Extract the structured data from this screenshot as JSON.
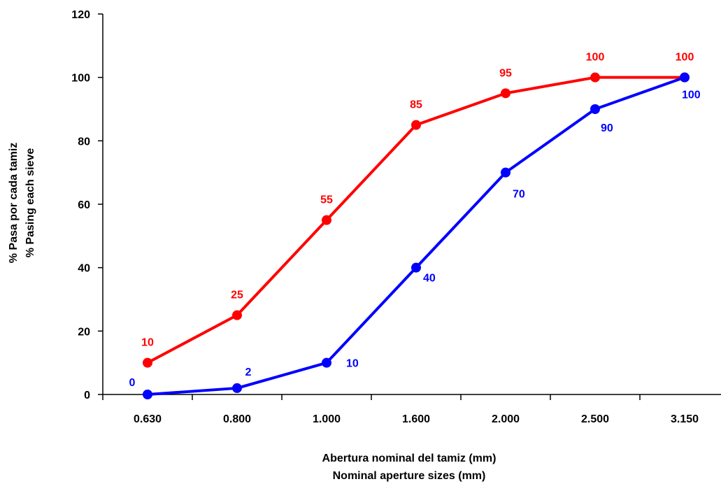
{
  "chart_data": {
    "type": "line",
    "categories": [
      "0.630",
      "0.800",
      "1.000",
      "1.600",
      "2.000",
      "2.500",
      "3.150"
    ],
    "series": [
      {
        "color": "#ff0000",
        "values": [
          10,
          25,
          55,
          85,
          95,
          100,
          100
        ]
      },
      {
        "color": "#0000ff",
        "values": [
          0,
          2,
          10,
          40,
          70,
          90,
          100
        ]
      }
    ],
    "ylim": [
      0,
      120
    ],
    "yticks": [
      0,
      20,
      40,
      60,
      80,
      100,
      120
    ],
    "xlabel_lines": [
      "Abertura nominal del tamiz (mm)",
      "Nominal aperture sizes (mm)"
    ],
    "ylabel_lines": [
      "% Pasa por cada tamiz",
      "% Pasing each sieve"
    ],
    "grid": false,
    "legend": false
  }
}
